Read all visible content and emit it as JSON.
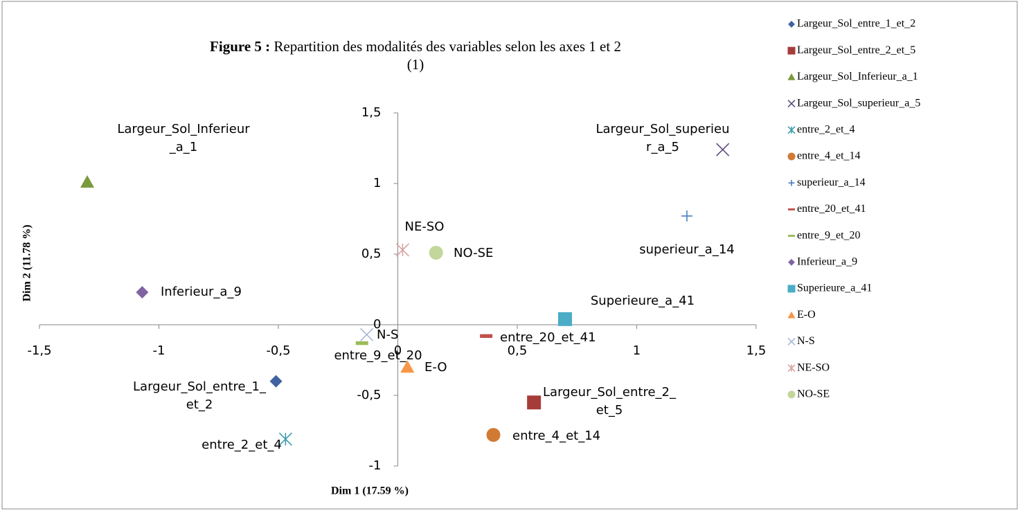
{
  "chart_data": {
    "type": "scatter",
    "title_label": "Figure 5 :",
    "title": "Repartition des modalités des variables selon les axes 1 et 2 (1)",
    "x_label": "Dim 1 (17.59 %)",
    "y_label": "Dim 2 (11.78 %)",
    "xlim": [
      -1.5,
      1.5
    ],
    "ylim": [
      -1,
      1.5
    ],
    "xticks": [
      {
        "value": -1.5,
        "label": "-1,5"
      },
      -1,
      {
        "value": -0.5,
        "label": "-0,5"
      },
      0,
      {
        "value": 0.5,
        "label": "0,5"
      },
      1,
      {
        "value": 1.5,
        "label": "1,5"
      }
    ],
    "yticks": [
      -1,
      {
        "value": -0.5,
        "label": "-0,5"
      },
      0,
      {
        "value": 0.5,
        "label": "0,5"
      },
      1,
      {
        "value": 1.5,
        "label": "1,5"
      }
    ],
    "legend": "right",
    "series": [
      {
        "name": "Largeur_Sol_entre_1_et_2",
        "color": "#3f62a0",
        "marker": "diamond",
        "x": -0.51,
        "y": -0.4
      },
      {
        "name": "Largeur_Sol_entre_2_et_5",
        "color": "#a63c3a",
        "marker": "square",
        "x": 0.57,
        "y": -0.55
      },
      {
        "name": "Largeur_Sol_Inferieur_a_1",
        "color": "#7a9a3c",
        "marker": "triangle",
        "x": -1.3,
        "y": 1.01
      },
      {
        "name": "Largeur_Sol_superieur_a_5",
        "color": "#5d4c7e",
        "marker": "x",
        "x": 1.36,
        "y": 1.24
      },
      {
        "name": "entre_2_et_4",
        "color": "#3a9cab",
        "marker": "star",
        "x": -0.47,
        "y": -0.81
      },
      {
        "name": "entre_4_et_14",
        "color": "#d07a33",
        "marker": "circle",
        "x": 0.4,
        "y": -0.78
      },
      {
        "name": "superieur_a_14",
        "color": "#4b7fc0",
        "marker": "plus",
        "x": 1.21,
        "y": 0.77
      },
      {
        "name": "entre_20_et_41",
        "color": "#c0504d",
        "marker": "dash",
        "x": 0.37,
        "y": -0.08
      },
      {
        "name": "entre_9_et_20",
        "color": "#9bbb59",
        "marker": "dash",
        "x": -0.15,
        "y": -0.13
      },
      {
        "name": "Inferieur_a_9",
        "color": "#8064a2",
        "marker": "diamond",
        "x": -1.07,
        "y": 0.23
      },
      {
        "name": "Superieure_a_41",
        "color": "#4bacc6",
        "marker": "square",
        "x": 0.7,
        "y": 0.04
      },
      {
        "name": "E-O",
        "color": "#f79646",
        "marker": "triangle",
        "x": 0.04,
        "y": -0.3
      },
      {
        "name": "N-S",
        "color": "#a6b8d8",
        "marker": "x",
        "x": -0.13,
        "y": -0.07
      },
      {
        "name": "NE-SO",
        "color": "#d9a0a0",
        "marker": "star",
        "x": 0.02,
        "y": 0.53
      },
      {
        "name": "NO-SE",
        "color": "#c3d69b",
        "marker": "circle",
        "x": 0.16,
        "y": 0.51
      }
    ]
  }
}
